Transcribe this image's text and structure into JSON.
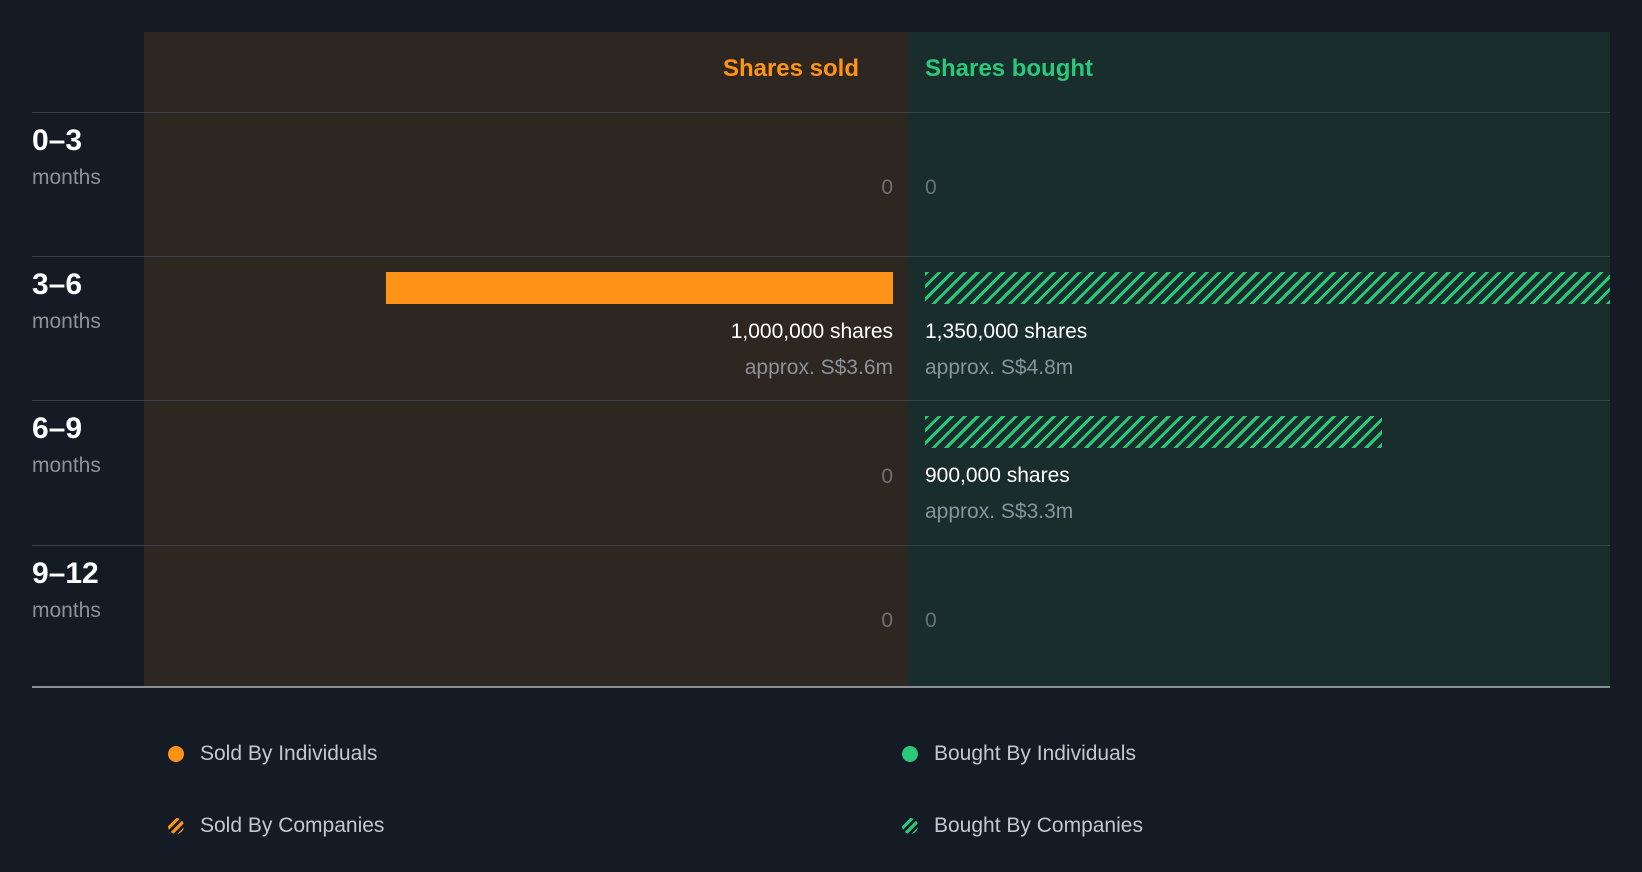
{
  "chart_data": {
    "type": "bar",
    "headers": {
      "sold": "Shares sold",
      "bought": "Shares bought"
    },
    "periods": [
      {
        "range": "0–3",
        "unit": "months",
        "sold": {
          "individuals": 0,
          "companies": 0
        },
        "bought": {
          "individuals": 0,
          "companies": 0
        },
        "sold_label": "0",
        "bought_label": "0"
      },
      {
        "range": "3–6",
        "unit": "months",
        "sold": {
          "individuals": 1000000,
          "companies": 0
        },
        "bought": {
          "individuals": 0,
          "companies": 1350000
        },
        "sold_shares": "1,000,000 shares",
        "sold_value": "approx. S$3.6m",
        "bought_shares": "1,350,000 shares",
        "bought_value": "approx. S$4.8m"
      },
      {
        "range": "6–9",
        "unit": "months",
        "sold": {
          "individuals": 0,
          "companies": 0
        },
        "bought": {
          "individuals": 0,
          "companies": 900000
        },
        "sold_label": "0",
        "bought_shares": "900,000 shares",
        "bought_value": "approx. S$3.3m"
      },
      {
        "range": "9–12",
        "unit": "months",
        "sold": {
          "individuals": 0,
          "companies": 0
        },
        "bought": {
          "individuals": 0,
          "companies": 0
        },
        "sold_label": "0",
        "bought_label": "0"
      }
    ],
    "legend": [
      {
        "label": "Sold By Individuals",
        "style": "solid",
        "color": "#ff9317"
      },
      {
        "label": "Bought By Individuals",
        "style": "solid",
        "color": "#2ac879"
      },
      {
        "label": "Sold By Companies",
        "style": "hatched",
        "color": "#ff9317"
      },
      {
        "label": "Bought By Companies",
        "style": "hatched",
        "color": "#2ac879"
      }
    ],
    "xlim": [
      0,
      1350000
    ],
    "colors": {
      "sold": "#ff9317",
      "bought": "#2ac879",
      "sold_bg": "#2e2621",
      "bought_bg": "#182d2c",
      "page_bg": "#151b24"
    }
  }
}
